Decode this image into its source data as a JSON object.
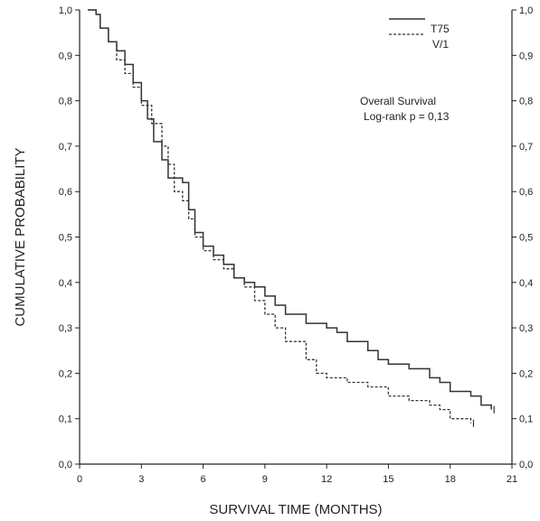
{
  "chart_data": {
    "type": "line",
    "title": "",
    "xlabel": "SURVIVAL TIME (MONTHS)",
    "ylabel": "CUMULATIVE PROBABILITY",
    "xlim": [
      0,
      21
    ],
    "ylim": [
      0,
      1.0
    ],
    "x_ticks": [
      0,
      3,
      6,
      9,
      12,
      15,
      18,
      21
    ],
    "y_ticks": [
      "0,0",
      "0,1",
      "0,2",
      "0,3",
      "0,4",
      "0,5",
      "0,6",
      "0,7",
      "0,8",
      "0,9",
      "1,0"
    ],
    "y_tick_values": [
      0.0,
      0.1,
      0.2,
      0.3,
      0.4,
      0.5,
      0.6,
      0.7,
      0.8,
      0.9,
      1.0
    ],
    "grid": false,
    "legend_position": "top-right",
    "annotations": [
      "Overall Survival",
      "Log-rank p = 0,13"
    ],
    "series": [
      {
        "name": "T75",
        "style": "solid",
        "color": "#333333",
        "x": [
          0.4,
          0.8,
          1.0,
          1.4,
          1.8,
          2.2,
          2.6,
          3.0,
          3.3,
          3.6,
          4.0,
          4.3,
          4.6,
          5.0,
          5.3,
          5.6,
          6.0,
          6.5,
          7.0,
          7.5,
          8.0,
          8.5,
          9.0,
          9.5,
          10.0,
          11.0,
          12.0,
          12.5,
          13.0,
          14.0,
          14.5,
          15.0,
          16.0,
          17.0,
          17.5,
          18.0,
          19.0,
          19.5,
          20.0
        ],
        "y": [
          1.0,
          0.99,
          0.96,
          0.93,
          0.91,
          0.88,
          0.84,
          0.8,
          0.76,
          0.71,
          0.67,
          0.63,
          0.63,
          0.62,
          0.56,
          0.51,
          0.48,
          0.46,
          0.44,
          0.41,
          0.4,
          0.39,
          0.37,
          0.35,
          0.33,
          0.31,
          0.3,
          0.29,
          0.27,
          0.25,
          0.23,
          0.22,
          0.21,
          0.19,
          0.18,
          0.16,
          0.15,
          0.13,
          0.12
        ]
      },
      {
        "name": "V/1",
        "style": "dashed",
        "color": "#333333",
        "x": [
          0.4,
          0.8,
          1.0,
          1.4,
          1.8,
          2.2,
          2.6,
          3.0,
          3.5,
          4.0,
          4.3,
          4.6,
          5.0,
          5.3,
          5.6,
          6.0,
          6.5,
          7.0,
          7.5,
          8.0,
          8.5,
          9.0,
          9.5,
          10.0,
          11.0,
          11.5,
          12.0,
          13.0,
          14.0,
          15.0,
          16.0,
          17.0,
          17.5,
          18.0,
          19.0
        ],
        "y": [
          1.0,
          0.99,
          0.96,
          0.93,
          0.89,
          0.86,
          0.83,
          0.79,
          0.75,
          0.7,
          0.66,
          0.6,
          0.58,
          0.54,
          0.5,
          0.47,
          0.45,
          0.43,
          0.41,
          0.39,
          0.36,
          0.33,
          0.3,
          0.27,
          0.23,
          0.2,
          0.19,
          0.18,
          0.17,
          0.15,
          0.14,
          0.13,
          0.12,
          0.1,
          0.09
        ]
      }
    ]
  }
}
